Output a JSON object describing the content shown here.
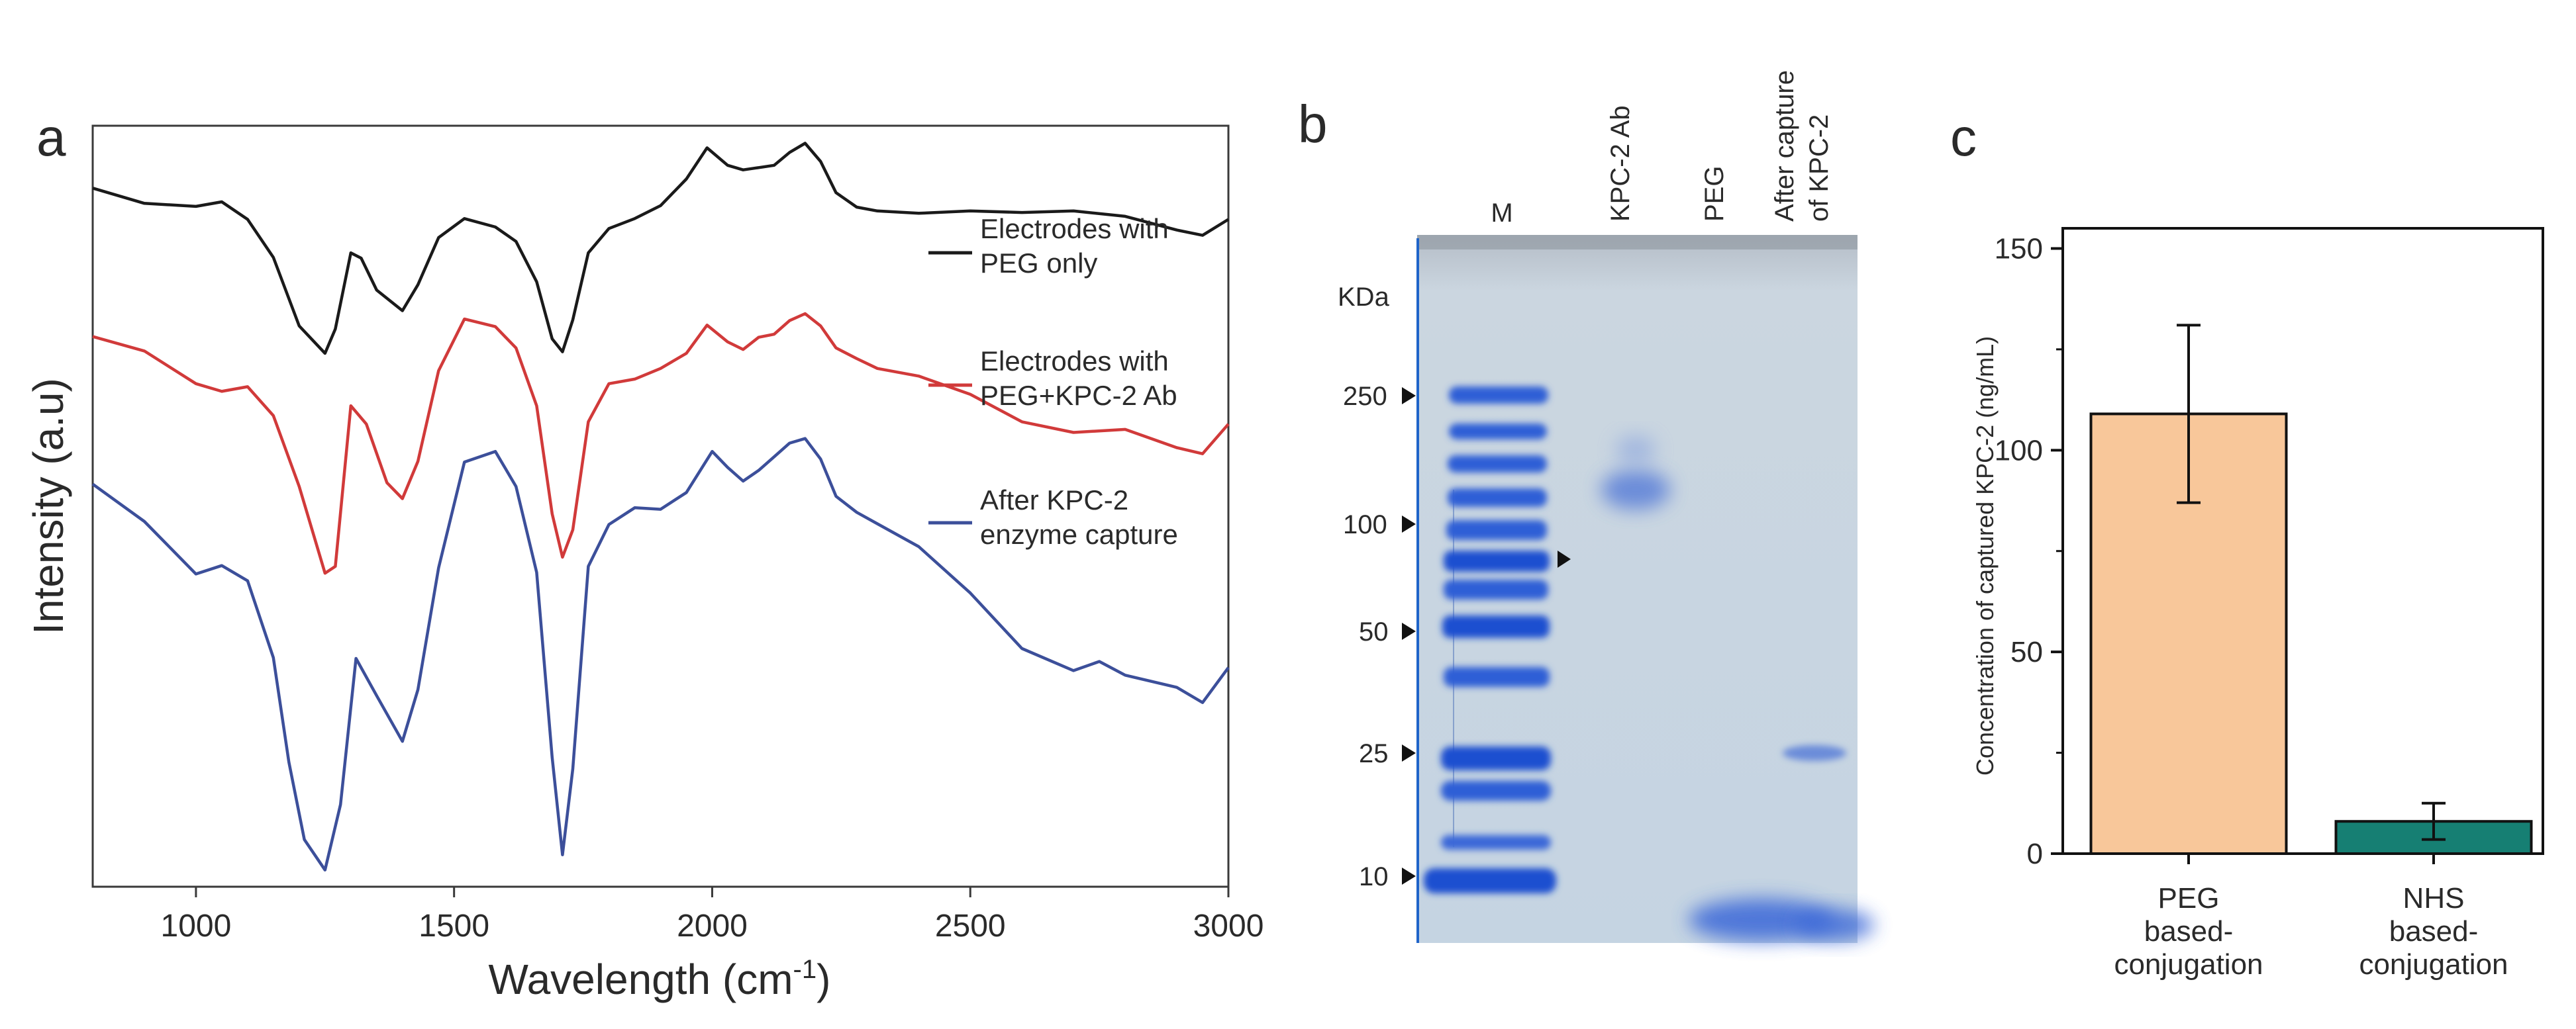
{
  "panels": {
    "a": "a",
    "b": "b",
    "c": "c"
  },
  "colors": {
    "peg_only": "#1a1a1a",
    "peg_kpc_ab": "#d13a3a",
    "after_capture": "#3c4f9a",
    "bar_peg": "#f8c79a",
    "bar_nhs": "#167f73",
    "gel_bg": "#c9d7e2",
    "gel_band": "#2f5fd6",
    "gel_frame": "#0f5ec9"
  },
  "chart_data": [
    {
      "type": "line",
      "panel": "a",
      "xlabel": "Wavelength (cm",
      "xlabel_sup": "-1",
      "xlabel_close": ")",
      "ylabel": "Intensity (a.u)",
      "xlim": [
        800,
        3000
      ],
      "ylim": [
        0,
        1
      ],
      "y_tick_labels": false,
      "x_ticks": [
        1000,
        1500,
        2000,
        2500,
        3000
      ],
      "x_tick_labels": [
        "1000",
        "1500",
        "2000",
        "2500",
        "3000"
      ],
      "legend": [
        {
          "text": [
            "Electrodes with",
            "PEG only"
          ],
          "series": "peg_only"
        },
        {
          "text": [
            "Electrodes with",
            "PEG+KPC-2 Ab"
          ],
          "series": "peg_kpc_ab"
        },
        {
          "text": [
            "After KPC-2",
            "enzyme capture"
          ],
          "series": "after_capture"
        }
      ],
      "series": [
        {
          "name": "Electrodes with PEG only",
          "id": "peg_only",
          "x": [
            800,
            900,
            1000,
            1050,
            1100,
            1150,
            1200,
            1250,
            1270,
            1300,
            1320,
            1350,
            1400,
            1430,
            1470,
            1520,
            1580,
            1620,
            1660,
            1690,
            1710,
            1730,
            1760,
            1800,
            1850,
            1900,
            1950,
            1990,
            2030,
            2060,
            2090,
            2120,
            2150,
            2180,
            2210,
            2240,
            2280,
            2320,
            2400,
            2500,
            2600,
            2700,
            2800,
            2900,
            2950,
            3000
          ],
          "y": [
            0.918,
            0.898,
            0.894,
            0.9,
            0.877,
            0.827,
            0.737,
            0.701,
            0.733,
            0.833,
            0.826,
            0.784,
            0.757,
            0.791,
            0.853,
            0.878,
            0.867,
            0.848,
            0.795,
            0.72,
            0.703,
            0.745,
            0.833,
            0.865,
            0.878,
            0.895,
            0.93,
            0.971,
            0.948,
            0.942,
            0.945,
            0.948,
            0.965,
            0.977,
            0.953,
            0.912,
            0.893,
            0.888,
            0.885,
            0.888,
            0.886,
            0.888,
            0.881,
            0.863,
            0.856,
            0.877
          ]
        },
        {
          "name": "Electrodes with PEG+KPC-2 Ab",
          "id": "peg_kpc_ab",
          "x": [
            800,
            900,
            1000,
            1050,
            1100,
            1150,
            1200,
            1250,
            1270,
            1300,
            1330,
            1370,
            1400,
            1430,
            1470,
            1520,
            1580,
            1620,
            1660,
            1690,
            1710,
            1730,
            1760,
            1800,
            1850,
            1900,
            1950,
            1990,
            2030,
            2060,
            2090,
            2120,
            2150,
            2180,
            2210,
            2240,
            2280,
            2320,
            2400,
            2500,
            2600,
            2700,
            2800,
            2900,
            2950,
            3000
          ],
          "y": [
            0.723,
            0.704,
            0.661,
            0.651,
            0.657,
            0.619,
            0.526,
            0.412,
            0.421,
            0.632,
            0.608,
            0.531,
            0.51,
            0.559,
            0.678,
            0.746,
            0.736,
            0.708,
            0.632,
            0.49,
            0.433,
            0.469,
            0.611,
            0.661,
            0.667,
            0.681,
            0.701,
            0.738,
            0.716,
            0.706,
            0.722,
            0.726,
            0.744,
            0.753,
            0.737,
            0.708,
            0.694,
            0.681,
            0.671,
            0.647,
            0.611,
            0.597,
            0.601,
            0.577,
            0.569,
            0.608
          ]
        },
        {
          "name": "After KPC-2 enzyme capture",
          "id": "after_capture",
          "x": [
            800,
            900,
            1000,
            1050,
            1100,
            1150,
            1180,
            1210,
            1250,
            1280,
            1310,
            1350,
            1400,
            1430,
            1470,
            1520,
            1580,
            1620,
            1660,
            1690,
            1710,
            1730,
            1760,
            1800,
            1850,
            1900,
            1950,
            2000,
            2030,
            2060,
            2090,
            2120,
            2150,
            2180,
            2210,
            2240,
            2280,
            2320,
            2400,
            2500,
            2600,
            2700,
            2750,
            2800,
            2900,
            2950,
            3000
          ],
          "y": [
            0.529,
            0.48,
            0.411,
            0.422,
            0.402,
            0.301,
            0.164,
            0.062,
            0.022,
            0.108,
            0.3,
            0.251,
            0.191,
            0.259,
            0.419,
            0.558,
            0.572,
            0.526,
            0.413,
            0.17,
            0.042,
            0.155,
            0.421,
            0.476,
            0.498,
            0.496,
            0.518,
            0.572,
            0.551,
            0.533,
            0.547,
            0.565,
            0.583,
            0.589,
            0.562,
            0.513,
            0.492,
            0.477,
            0.447,
            0.386,
            0.313,
            0.284,
            0.296,
            0.278,
            0.262,
            0.242,
            0.288
          ]
        }
      ]
    },
    {
      "type": "gel",
      "panel": "b",
      "lanes": [
        "M",
        "KPC-2 Ab",
        "PEG",
        "After capture",
        "of KPC-2"
      ],
      "unit_label": "KDa",
      "markers": [
        "250",
        "100",
        "50",
        "25",
        "10"
      ]
    },
    {
      "type": "bar",
      "panel": "c",
      "title": "",
      "xlabel": "",
      "ylabel": "Concentration of captured KPC-2 (ng/mL)",
      "ylim": [
        0,
        155
      ],
      "y_ticks": [
        0,
        50,
        100,
        150
      ],
      "y_tick_labels": [
        "0",
        "50",
        "100",
        "150"
      ],
      "categories": [
        [
          "PEG",
          "based-",
          "conjugation"
        ],
        [
          "NHS",
          "based-",
          "conjugation"
        ]
      ],
      "values": [
        109,
        8
      ],
      "errors": [
        22,
        4.5
      ]
    }
  ]
}
